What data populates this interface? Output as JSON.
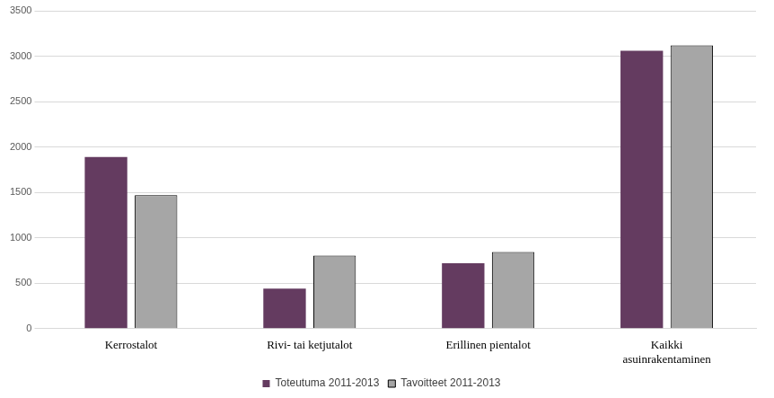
{
  "chart_data": {
    "type": "bar",
    "categories": [
      "Kerrostalot",
      "Rivi- tai ketjutalot",
      "Erillinen pientalot",
      "Kaikki asuinrakentaminen"
    ],
    "series": [
      {
        "name": "Toteutuma 2011-2013",
        "color": "#643b60",
        "values": [
          1890,
          440,
          720,
          3060
        ]
      },
      {
        "name": "Tavoitteet 2011-2013",
        "color": "#a6a6a6",
        "values": [
          1470,
          805,
          845,
          3120
        ]
      }
    ],
    "ylim": [
      0,
      3500
    ],
    "yticks": [
      0,
      500,
      1000,
      1500,
      2000,
      2500,
      3000,
      3500
    ],
    "grid": true,
    "legend": "bottom"
  }
}
